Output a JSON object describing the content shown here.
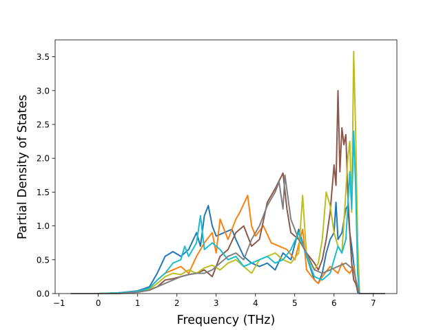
{
  "chart_data": {
    "type": "line",
    "title": "",
    "xlabel": "Frequency (THz)",
    "ylabel": "Partial Density of States",
    "xlim": [
      -1.1,
      7.6
    ],
    "ylim": [
      0,
      3.75
    ],
    "xticks": [
      -1,
      0,
      1,
      2,
      3,
      4,
      5,
      6,
      7
    ],
    "yticks": [
      0.0,
      0.5,
      1.0,
      1.5,
      2.0,
      2.5,
      3.0,
      3.5
    ],
    "xtick_labels": [
      "−1",
      "0",
      "1",
      "2",
      "3",
      "4",
      "5",
      "6",
      "7"
    ],
    "ytick_labels": [
      "0.0",
      "0.5",
      "1.0",
      "1.5",
      "2.0",
      "2.5",
      "3.0",
      "3.5"
    ],
    "grid": false,
    "legend": "none",
    "series": [
      {
        "color": "#1f77b4",
        "x": [
          -0.7,
          0.0,
          0.5,
          1.0,
          1.3,
          1.5,
          1.7,
          1.9,
          2.1,
          2.3,
          2.5,
          2.6,
          2.7,
          2.8,
          2.9,
          3.0,
          3.2,
          3.4,
          3.5,
          3.7,
          3.9,
          4.1,
          4.3,
          4.5,
          4.7,
          4.9,
          5.1,
          5.3,
          5.5,
          5.6,
          5.7,
          5.8,
          5.9,
          6.0,
          6.05,
          6.1,
          6.2,
          6.3,
          6.35,
          6.4,
          6.45,
          6.5,
          6.55,
          6.6,
          6.65,
          7.3
        ],
        "y": [
          0.0,
          0.0,
          0.01,
          0.04,
          0.1,
          0.3,
          0.55,
          0.62,
          0.55,
          0.65,
          0.9,
          0.7,
          1.15,
          1.3,
          1.0,
          0.85,
          0.9,
          0.95,
          0.8,
          0.55,
          0.45,
          0.4,
          0.45,
          0.35,
          0.6,
          0.5,
          0.95,
          0.55,
          0.2,
          0.15,
          0.3,
          0.6,
          0.8,
          0.9,
          1.35,
          0.8,
          0.9,
          1.25,
          1.3,
          0.9,
          0.7,
          0.45,
          0.2,
          0.02,
          0.0,
          0.0
        ]
      },
      {
        "color": "#ff7f0e",
        "x": [
          -0.7,
          0.0,
          0.5,
          1.0,
          1.3,
          1.5,
          1.7,
          1.9,
          2.1,
          2.3,
          2.5,
          2.7,
          2.9,
          3.0,
          3.1,
          3.3,
          3.5,
          3.6,
          3.8,
          3.9,
          4.0,
          4.2,
          4.4,
          4.6,
          4.8,
          5.0,
          5.2,
          5.3,
          5.5,
          5.6,
          5.7,
          5.9,
          6.0,
          6.1,
          6.2,
          6.3,
          6.4,
          6.5,
          6.55,
          6.6,
          6.65,
          7.3
        ],
        "y": [
          0.0,
          0.0,
          0.01,
          0.03,
          0.08,
          0.2,
          0.3,
          0.35,
          0.4,
          0.3,
          0.55,
          0.75,
          0.9,
          0.6,
          1.1,
          0.8,
          1.1,
          1.2,
          1.45,
          1.0,
          0.85,
          1.0,
          0.75,
          0.7,
          0.65,
          0.5,
          0.95,
          0.35,
          0.2,
          0.15,
          0.25,
          0.4,
          0.35,
          0.3,
          0.45,
          0.35,
          0.3,
          0.4,
          0.2,
          0.05,
          0.0,
          0.0
        ]
      },
      {
        "color": "#8c564b",
        "x": [
          -0.7,
          0.0,
          0.5,
          1.0,
          1.3,
          1.5,
          1.7,
          1.9,
          2.1,
          2.3,
          2.5,
          2.7,
          2.9,
          3.1,
          3.3,
          3.5,
          3.7,
          3.9,
          4.1,
          4.3,
          4.5,
          4.7,
          4.8,
          4.9,
          5.1,
          5.3,
          5.5,
          5.6,
          5.7,
          5.8,
          5.9,
          6.0,
          6.05,
          6.1,
          6.15,
          6.2,
          6.25,
          6.3,
          6.35,
          6.4,
          6.45,
          6.5,
          6.55,
          6.6,
          6.65,
          7.3
        ],
        "y": [
          0.0,
          0.0,
          0.01,
          0.02,
          0.05,
          0.1,
          0.2,
          0.22,
          0.25,
          0.28,
          0.3,
          0.35,
          0.25,
          0.55,
          0.65,
          0.9,
          1.0,
          0.7,
          0.8,
          1.35,
          1.55,
          1.78,
          1.25,
          0.9,
          0.8,
          0.6,
          0.45,
          0.35,
          0.5,
          0.8,
          1.2,
          1.9,
          1.6,
          3.0,
          1.8,
          2.45,
          2.2,
          2.35,
          1.5,
          0.9,
          0.45,
          0.2,
          0.15,
          0.05,
          0.0,
          0.0
        ]
      },
      {
        "color": "#bcbd22",
        "x": [
          -0.7,
          0.0,
          0.5,
          1.0,
          1.3,
          1.5,
          1.7,
          1.9,
          2.1,
          2.3,
          2.5,
          2.7,
          2.9,
          3.1,
          3.3,
          3.5,
          3.7,
          3.9,
          4.1,
          4.3,
          4.5,
          4.7,
          4.9,
          5.1,
          5.2,
          5.3,
          5.5,
          5.6,
          5.7,
          5.8,
          5.9,
          6.0,
          6.1,
          6.2,
          6.3,
          6.35,
          6.4,
          6.45,
          6.5,
          6.55,
          6.6,
          6.65,
          7.3
        ],
        "y": [
          0.0,
          0.0,
          0.01,
          0.02,
          0.06,
          0.15,
          0.25,
          0.3,
          0.28,
          0.35,
          0.3,
          0.38,
          0.42,
          0.35,
          0.45,
          0.5,
          0.4,
          0.3,
          0.5,
          0.55,
          0.6,
          0.5,
          0.45,
          0.6,
          1.45,
          0.55,
          0.35,
          0.45,
          0.8,
          1.5,
          1.3,
          0.9,
          0.7,
          0.6,
          1.5,
          2.0,
          2.25,
          1.2,
          3.58,
          2.4,
          0.8,
          0.0,
          0.0
        ]
      },
      {
        "color": "#17becf",
        "x": [
          -0.7,
          0.0,
          0.5,
          1.0,
          1.3,
          1.5,
          1.7,
          1.9,
          2.1,
          2.2,
          2.3,
          2.5,
          2.6,
          2.7,
          2.9,
          3.1,
          3.3,
          3.5,
          3.7,
          3.9,
          4.1,
          4.3,
          4.5,
          4.7,
          4.9,
          5.1,
          5.3,
          5.5,
          5.7,
          5.9,
          6.0,
          6.1,
          6.2,
          6.3,
          6.4,
          6.45,
          6.5,
          6.55,
          6.6,
          6.65,
          7.3
        ],
        "y": [
          0.0,
          0.0,
          0.01,
          0.03,
          0.08,
          0.2,
          0.3,
          0.45,
          0.5,
          0.7,
          0.55,
          0.75,
          1.15,
          0.65,
          0.75,
          0.65,
          0.5,
          0.55,
          0.4,
          0.45,
          0.5,
          0.55,
          0.45,
          0.5,
          0.65,
          0.9,
          0.55,
          0.25,
          0.2,
          0.3,
          0.5,
          0.7,
          0.6,
          0.8,
          1.8,
          1.25,
          2.4,
          1.6,
          0.3,
          0.0,
          0.0
        ]
      },
      {
        "color": "#7f7f7f",
        "x": [
          -0.7,
          0.0,
          0.5,
          1.0,
          1.3,
          1.5,
          1.7,
          1.9,
          2.1,
          2.3,
          2.5,
          2.7,
          2.9,
          3.1,
          3.3,
          3.5,
          3.7,
          3.9,
          4.1,
          4.3,
          4.5,
          4.6,
          4.7,
          4.75,
          4.9,
          5.1,
          5.3,
          5.5,
          5.7,
          5.9,
          6.1,
          6.3,
          6.5,
          6.6,
          6.65,
          7.3
        ],
        "y": [
          0.0,
          0.0,
          0.0,
          0.02,
          0.05,
          0.1,
          0.15,
          0.2,
          0.25,
          0.28,
          0.3,
          0.3,
          0.35,
          0.45,
          0.55,
          0.6,
          0.5,
          0.8,
          1.0,
          1.3,
          1.5,
          1.65,
          1.25,
          1.75,
          1.1,
          0.8,
          0.6,
          0.35,
          0.3,
          0.35,
          0.4,
          0.45,
          0.35,
          0.1,
          0.0,
          0.0
        ]
      }
    ]
  }
}
